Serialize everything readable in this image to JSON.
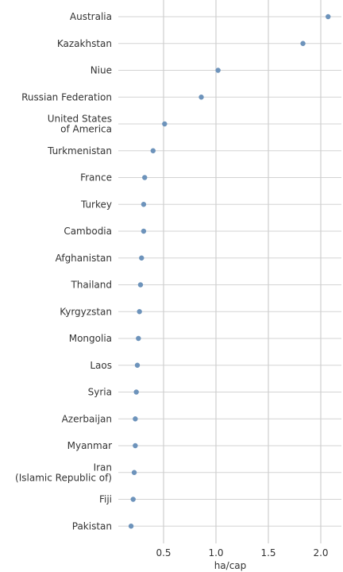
{
  "chart_data": {
    "type": "scatter",
    "categories": [
      "Australia",
      "Kazakhstan",
      "Niue",
      "Russian Federation",
      "United States\nof America",
      "Turkmenistan",
      "France",
      "Turkey",
      "Cambodia",
      "Afghanistan",
      "Thailand",
      "Kyrgyzstan",
      "Mongolia",
      "Laos",
      "Syria",
      "Azerbaijan",
      "Myanmar",
      "Iran\n(Islamic Republic of)",
      "Fiji",
      "Pakistan"
    ],
    "values": [
      2.07,
      1.83,
      1.02,
      0.86,
      0.51,
      0.4,
      0.32,
      0.31,
      0.31,
      0.29,
      0.28,
      0.27,
      0.26,
      0.25,
      0.24,
      0.23,
      0.23,
      0.22,
      0.21,
      0.19
    ],
    "xlabel": "ha/cap",
    "xticks": [
      "0.5",
      "1.0",
      "1.5",
      "2.0"
    ],
    "xlim": [
      0.18,
      2.12
    ],
    "grid": true,
    "colors": {
      "point": "#6d93bb",
      "grid": "#d3d3d3"
    }
  }
}
